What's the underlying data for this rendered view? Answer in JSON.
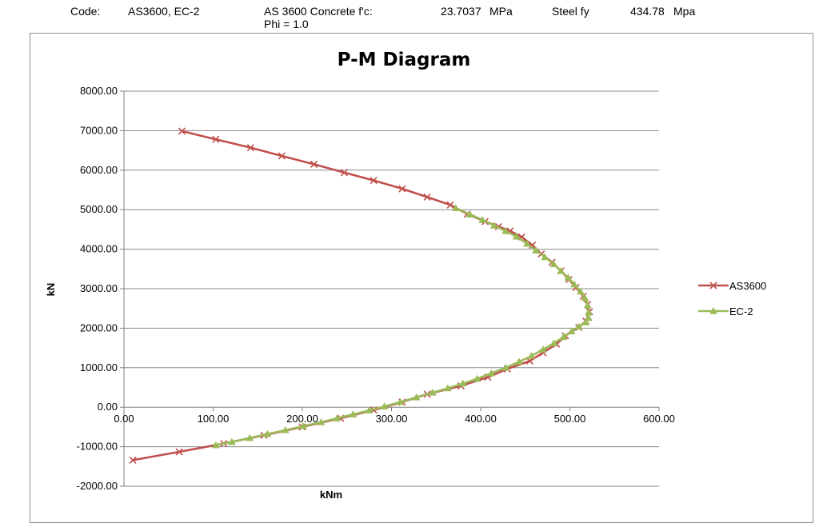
{
  "header": {
    "code_label": "Code:",
    "code_value": "AS3600, EC-2",
    "concrete_label": "AS 3600 Concrete f'c:",
    "concrete_value": "23.7037",
    "concrete_unit": "MPa",
    "phi": "Phi = 1.0",
    "steel_label": "Steel fy",
    "steel_value": "434.78",
    "steel_unit": "Mpa"
  },
  "chart_data": {
    "type": "line",
    "title": "P-M Diagram",
    "xlabel": "kNm",
    "ylabel": "kN",
    "xlim": [
      0,
      600
    ],
    "ylim": [
      -2000,
      8000
    ],
    "x_ticks": [
      "0.00",
      "100.00",
      "200.00",
      "300.00",
      "400.00",
      "500.00",
      "600.00"
    ],
    "y_ticks": [
      "8000.00",
      "7000.00",
      "6000.00",
      "5000.00",
      "4000.00",
      "3000.00",
      "2000.00",
      "1000.00",
      "0.00",
      "-1000.00",
      "-2000.00"
    ],
    "grid": "horizontal",
    "legend_position": "right",
    "series": [
      {
        "name": "AS3600",
        "color": "#c0504d",
        "marker": "x",
        "points": [
          [
            65,
            6990
          ],
          [
            103,
            6780
          ],
          [
            142,
            6570
          ],
          [
            177,
            6360
          ],
          [
            213,
            6150
          ],
          [
            247,
            5940
          ],
          [
            280,
            5740
          ],
          [
            312,
            5530
          ],
          [
            340,
            5320
          ],
          [
            366,
            5120
          ],
          [
            385,
            4890
          ],
          [
            405,
            4700
          ],
          [
            420,
            4570
          ],
          [
            433,
            4460
          ],
          [
            446,
            4310
          ],
          [
            458,
            4100
          ],
          [
            468,
            3880
          ],
          [
            480,
            3670
          ],
          [
            490,
            3450
          ],
          [
            499,
            3230
          ],
          [
            507,
            3030
          ],
          [
            515,
            2810
          ],
          [
            520,
            2600
          ],
          [
            522,
            2420
          ],
          [
            518,
            2180
          ],
          [
            510,
            2020
          ],
          [
            495,
            1810
          ],
          [
            485,
            1600
          ],
          [
            470,
            1380
          ],
          [
            455,
            1170
          ],
          [
            430,
            970
          ],
          [
            408,
            760
          ],
          [
            378,
            540
          ],
          [
            340,
            330
          ],
          [
            312,
            130
          ],
          [
            280,
            -70
          ],
          [
            243,
            -280
          ],
          [
            200,
            -500
          ],
          [
            157,
            -710
          ],
          [
            112,
            -920
          ],
          [
            62,
            -1130
          ],
          [
            10,
            -1340
          ]
        ]
      },
      {
        "name": "EC-2",
        "color": "#9bbb59",
        "marker": "triangle",
        "points": [
          [
            372,
            5040
          ],
          [
            388,
            4880
          ],
          [
            402,
            4740
          ],
          [
            415,
            4600
          ],
          [
            428,
            4460
          ],
          [
            440,
            4320
          ],
          [
            452,
            4140
          ],
          [
            462,
            3970
          ],
          [
            472,
            3800
          ],
          [
            482,
            3620
          ],
          [
            490,
            3450
          ],
          [
            498,
            3280
          ],
          [
            505,
            3110
          ],
          [
            512,
            2930
          ],
          [
            517,
            2760
          ],
          [
            520,
            2580
          ],
          [
            521,
            2400
          ],
          [
            521,
            2260
          ],
          [
            518,
            2150
          ],
          [
            510,
            2040
          ],
          [
            502,
            1920
          ],
          [
            493,
            1780
          ],
          [
            482,
            1620
          ],
          [
            470,
            1460
          ],
          [
            457,
            1300
          ],
          [
            443,
            1150
          ],
          [
            428,
            1000
          ],
          [
            412,
            860
          ],
          [
            396,
            720
          ],
          [
            380,
            600
          ],
          [
            363,
            480
          ],
          [
            346,
            370
          ],
          [
            328,
            250
          ],
          [
            310,
            130
          ],
          [
            292,
            20
          ],
          [
            275,
            -80
          ],
          [
            257,
            -180
          ],
          [
            239,
            -280
          ],
          [
            221,
            -380
          ],
          [
            201,
            -480
          ],
          [
            181,
            -580
          ],
          [
            161,
            -680
          ],
          [
            141,
            -780
          ],
          [
            121,
            -880
          ],
          [
            103,
            -960
          ]
        ]
      }
    ]
  }
}
